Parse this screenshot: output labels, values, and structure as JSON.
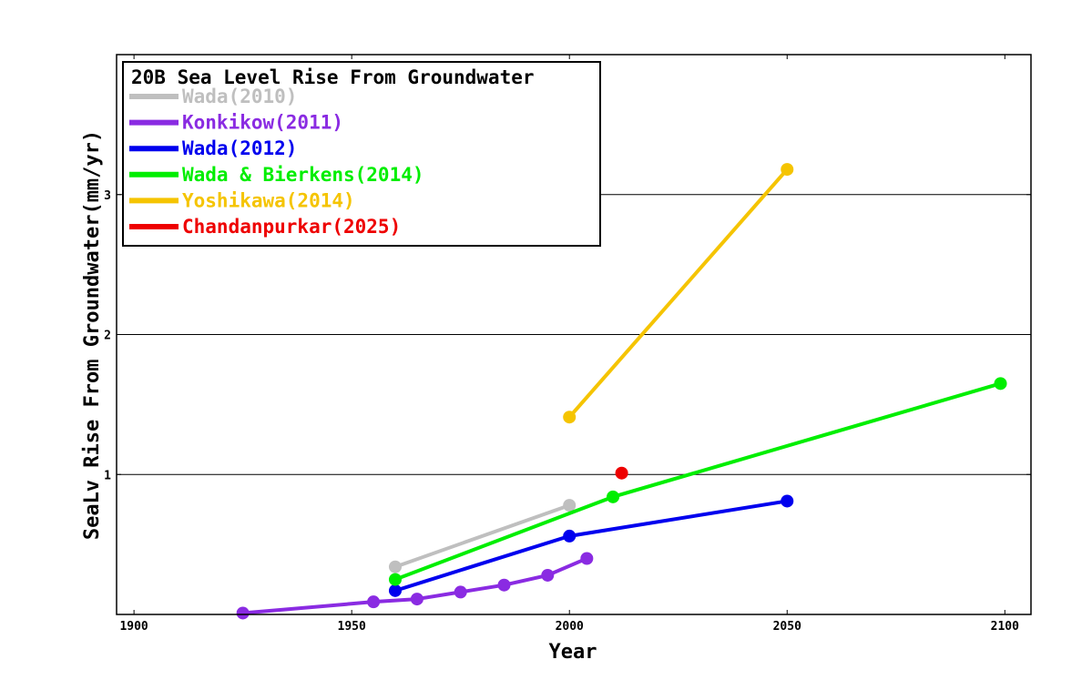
{
  "chart_data": {
    "type": "line",
    "xlabel": "Year",
    "ylabel": "SeaLv Rise From Groundwater(mm/yr)",
    "xlim": [
      1896,
      2106
    ],
    "ylim": [
      0,
      4
    ],
    "xticks": [
      1900,
      1950,
      2000,
      2050,
      2100
    ],
    "yticks": [
      1,
      2,
      3
    ],
    "grid": "horizontal",
    "legend": {
      "title": "20B Sea Level Rise From Groundwater",
      "placement": "top-left"
    },
    "series": [
      {
        "name": "Wada(2010)",
        "color": "#bfbfbf",
        "x": [
          1960,
          2000
        ],
        "y": [
          0.34,
          0.78
        ]
      },
      {
        "name": "Konkikow(2011)",
        "color": "#8a2be2",
        "x": [
          1925,
          1955,
          1965,
          1975,
          1985,
          1995,
          2004
        ],
        "y": [
          0.01,
          0.09,
          0.11,
          0.16,
          0.21,
          0.28,
          0.4
        ]
      },
      {
        "name": "Wada(2012)",
        "color": "#0000ee",
        "x": [
          1960,
          2000,
          2050
        ],
        "y": [
          0.17,
          0.56,
          0.81
        ]
      },
      {
        "name": "Wada & Bierkens(2014)",
        "color": "#00ee00",
        "x": [
          1960,
          2010,
          2099
        ],
        "y": [
          0.25,
          0.84,
          1.65
        ]
      },
      {
        "name": "Yoshikawa(2014)",
        "color": "#f5c400",
        "x": [
          2000,
          2050
        ],
        "y": [
          1.41,
          3.18
        ]
      },
      {
        "name": "Chandanpurkar(2025)",
        "color": "#ee0000",
        "x": [
          2012
        ],
        "y": [
          1.01
        ]
      }
    ]
  }
}
